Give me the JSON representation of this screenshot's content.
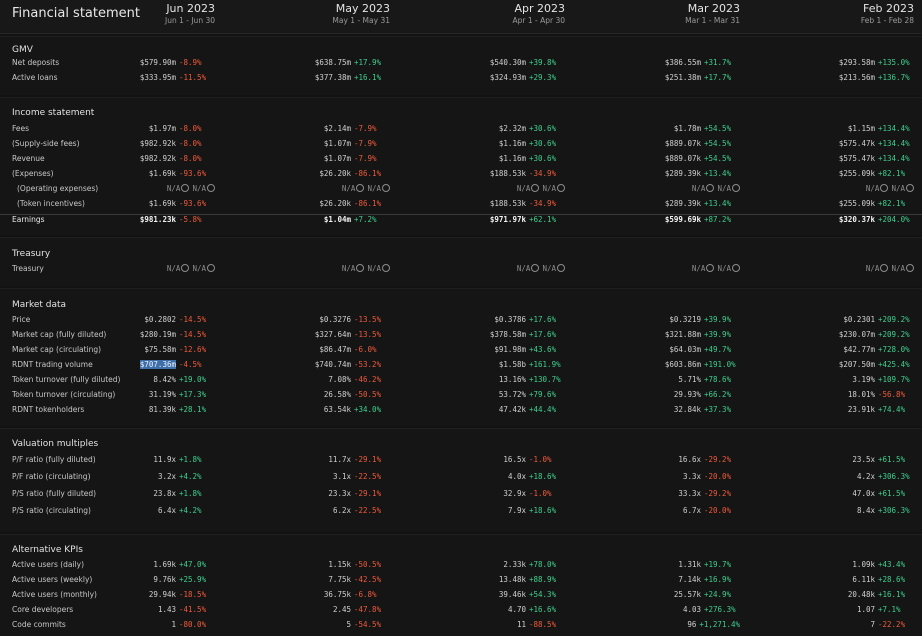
{
  "title": "Financial statement",
  "columns": [
    {
      "month": "Jun 2023",
      "range": "Jun 1 - Jun 30"
    },
    {
      "month": "May 2023",
      "range": "May 1 - May 31"
    },
    {
      "month": "Apr 2023",
      "range": "Apr 1 - Apr 30"
    },
    {
      "month": "Mar 2023",
      "range": "Mar 1 - Mar 31"
    },
    {
      "month": "Feb 2023",
      "range": "Feb 1 - Feb 28"
    }
  ],
  "sections": [
    {
      "title": "GMV",
      "rows": [
        {
          "label": "Net deposits",
          "cells": [
            [
              "$579.90m",
              "-8.9%"
            ],
            [
              "$638.75m",
              "+17.9%"
            ],
            [
              "$540.30m",
              "+39.8%"
            ],
            [
              "$386.55m",
              "+31.7%"
            ],
            [
              "$293.58m",
              "+135.0%"
            ]
          ]
        },
        {
          "label": "Active loans",
          "cells": [
            [
              "$333.95m",
              "-11.5%"
            ],
            [
              "$377.38m",
              "+16.1%"
            ],
            [
              "$324.93m",
              "+29.3%"
            ],
            [
              "$251.38m",
              "+17.7%"
            ],
            [
              "$213.56m",
              "+136.7%"
            ]
          ]
        }
      ]
    },
    {
      "title": "Income statement",
      "rows": [
        {
          "label": "Fees",
          "cells": [
            [
              "$1.97m",
              "-8.0%"
            ],
            [
              "$2.14m",
              "-7.9%"
            ],
            [
              "$2.32m",
              "+30.6%"
            ],
            [
              "$1.78m",
              "+54.5%"
            ],
            [
              "$1.15m",
              "+134.4%"
            ]
          ]
        },
        {
          "label": "(Supply-side fees)",
          "cells": [
            [
              "$982.92k",
              "-8.0%"
            ],
            [
              "$1.07m",
              "-7.9%"
            ],
            [
              "$1.16m",
              "+30.6%"
            ],
            [
              "$889.07k",
              "+54.5%"
            ],
            [
              "$575.47k",
              "+134.4%"
            ]
          ]
        },
        {
          "label": "Revenue",
          "cells": [
            [
              "$982.92k",
              "-8.0%"
            ],
            [
              "$1.07m",
              "-7.9%"
            ],
            [
              "$1.16m",
              "+30.6%"
            ],
            [
              "$889.07k",
              "+54.5%"
            ],
            [
              "$575.47k",
              "+134.4%"
            ]
          ]
        },
        {
          "label": "(Expenses)",
          "cells": [
            [
              "$1.69k",
              "-93.6%"
            ],
            [
              "$26.20k",
              "-86.1%"
            ],
            [
              "$188.53k",
              "-34.9%"
            ],
            [
              "$289.39k",
              "+13.4%"
            ],
            [
              "$255.09k",
              "+82.1%"
            ]
          ]
        },
        {
          "label": "(Operating expenses)",
          "indent": true,
          "cells": [
            [
              "N/A",
              "N/A"
            ],
            [
              "N/A",
              "N/A"
            ],
            [
              "N/A",
              "N/A"
            ],
            [
              "N/A",
              "N/A"
            ],
            [
              "N/A",
              "N/A"
            ]
          ]
        },
        {
          "label": "(Token incentives)",
          "indent": true,
          "cells": [
            [
              "$1.69k",
              "-93.6%"
            ],
            [
              "$26.20k",
              "-86.1%"
            ],
            [
              "$188.53k",
              "-34.9%"
            ],
            [
              "$289.39k",
              "+13.4%"
            ],
            [
              "$255.09k",
              "+82.1%"
            ]
          ]
        },
        {
          "label": "Earnings",
          "bold": true,
          "sep": true,
          "cells": [
            [
              "$981.23k",
              "-5.8%"
            ],
            [
              "$1.04m",
              "+7.2%"
            ],
            [
              "$971.97k",
              "+62.1%"
            ],
            [
              "$599.69k",
              "+87.2%"
            ],
            [
              "$320.37k",
              "+204.0%"
            ]
          ]
        }
      ]
    },
    {
      "title": "Treasury",
      "rows": [
        {
          "label": "Treasury",
          "cells": [
            [
              "N/A",
              "N/A"
            ],
            [
              "N/A",
              "N/A"
            ],
            [
              "N/A",
              "N/A"
            ],
            [
              "N/A",
              "N/A"
            ],
            [
              "N/A",
              "N/A"
            ]
          ]
        }
      ]
    },
    {
      "title": "Market data",
      "rows": [
        {
          "label": "Price",
          "cells": [
            [
              "$0.2802",
              "-14.5%"
            ],
            [
              "$0.3276",
              "-13.5%"
            ],
            [
              "$0.3786",
              "+17.6%"
            ],
            [
              "$0.3219",
              "+39.9%"
            ],
            [
              "$0.2301",
              "+209.2%"
            ]
          ]
        },
        {
          "label": "Market cap (fully diluted)",
          "cells": [
            [
              "$280.19m",
              "-14.5%"
            ],
            [
              "$327.64m",
              "-13.5%"
            ],
            [
              "$378.58m",
              "+17.6%"
            ],
            [
              "$321.88m",
              "+39.9%"
            ],
            [
              "$230.07m",
              "+209.2%"
            ]
          ]
        },
        {
          "label": "Market cap (circulating)",
          "cells": [
            [
              "$75.58m",
              "-12.6%"
            ],
            [
              "$86.47m",
              "-6.0%"
            ],
            [
              "$91.98m",
              "+43.6%"
            ],
            [
              "$64.03m",
              "+49.7%"
            ],
            [
              "$42.77m",
              "+728.0%"
            ]
          ]
        },
        {
          "label": "RDNT trading volume",
          "cells": [
            [
              "$707.36m",
              "-4.5%"
            ],
            [
              "$740.74m",
              "-53.2%"
            ],
            [
              "$1.58b",
              "+161.9%"
            ],
            [
              "$603.86m",
              "+191.0%"
            ],
            [
              "$207.50m",
              "+425.4%"
            ]
          ]
        },
        {
          "label": "Token turnover (fully diluted)",
          "cells": [
            [
              "8.42%",
              "+19.0%"
            ],
            [
              "7.08%",
              "-46.2%"
            ],
            [
              "13.16%",
              "+130.7%"
            ],
            [
              "5.71%",
              "+78.6%"
            ],
            [
              "3.19%",
              "+109.7%"
            ]
          ]
        },
        {
          "label": "Token turnover (circulating)",
          "cells": [
            [
              "31.19%",
              "+17.3%"
            ],
            [
              "26.58%",
              "-50.5%"
            ],
            [
              "53.72%",
              "+79.6%"
            ],
            [
              "29.93%",
              "+66.2%"
            ],
            [
              "18.01%",
              "-56.8%"
            ]
          ]
        },
        {
          "label": "RDNT tokenholders",
          "cells": [
            [
              "81.39k",
              "+28.1%"
            ],
            [
              "63.54k",
              "+34.0%"
            ],
            [
              "47.42k",
              "+44.4%"
            ],
            [
              "32.84k",
              "+37.3%"
            ],
            [
              "23.91k",
              "+74.4%"
            ]
          ]
        }
      ]
    },
    {
      "title": "Valuation multiples",
      "rows": [
        {
          "label": "P/F ratio (fully diluted)",
          "cells": [
            [
              "11.9x",
              "+1.8%"
            ],
            [
              "11.7x",
              "-29.1%"
            ],
            [
              "16.5x",
              "-1.0%"
            ],
            [
              "16.6x",
              "-29.2%"
            ],
            [
              "23.5x",
              "+61.5%"
            ]
          ]
        },
        {
          "label": "P/F ratio (circulating)",
          "cells": [
            [
              "3.2x",
              "+4.2%"
            ],
            [
              "3.1x",
              "-22.5%"
            ],
            [
              "4.0x",
              "+18.6%"
            ],
            [
              "3.3x",
              "-20.0%"
            ],
            [
              "4.2x",
              "+306.3%"
            ]
          ]
        },
        {
          "label": "P/S ratio (fully diluted)",
          "cells": [
            [
              "23.8x",
              "+1.8%"
            ],
            [
              "23.3x",
              "-29.1%"
            ],
            [
              "32.9x",
              "-1.0%"
            ],
            [
              "33.3x",
              "-29.2%"
            ],
            [
              "47.0x",
              "+61.5%"
            ]
          ]
        },
        {
          "label": "P/S ratio (circulating)",
          "cells": [
            [
              "6.4x",
              "+4.2%"
            ],
            [
              "6.2x",
              "-22.5%"
            ],
            [
              "7.9x",
              "+18.6%"
            ],
            [
              "6.7x",
              "-20.0%"
            ],
            [
              "8.4x",
              "+306.3%"
            ]
          ]
        }
      ]
    },
    {
      "title": "Alternative KPIs",
      "rows": [
        {
          "label": "Active users (daily)",
          "cells": [
            [
              "1.69k",
              "+47.0%"
            ],
            [
              "1.15k",
              "-50.5%"
            ],
            [
              "2.33k",
              "+78.0%"
            ],
            [
              "1.31k",
              "+19.7%"
            ],
            [
              "1.09k",
              "+43.4%"
            ]
          ]
        },
        {
          "label": "Active users (weekly)",
          "cells": [
            [
              "9.76k",
              "+25.9%"
            ],
            [
              "7.75k",
              "-42.5%"
            ],
            [
              "13.48k",
              "+88.9%"
            ],
            [
              "7.14k",
              "+16.9%"
            ],
            [
              "6.11k",
              "+28.6%"
            ]
          ]
        },
        {
          "label": "Active users (monthly)",
          "cells": [
            [
              "29.94k",
              "-18.5%"
            ],
            [
              "36.75k",
              "-6.8%"
            ],
            [
              "39.46k",
              "+54.3%"
            ],
            [
              "25.57k",
              "+24.9%"
            ],
            [
              "20.48k",
              "+16.1%"
            ]
          ]
        },
        {
          "label": "Core developers",
          "cells": [
            [
              "1.43",
              "-41.5%"
            ],
            [
              "2.45",
              "-47.8%"
            ],
            [
              "4.70",
              "+16.6%"
            ],
            [
              "4.03",
              "+276.3%"
            ],
            [
              "1.07",
              "+7.1%"
            ]
          ]
        },
        {
          "label": "Code commits",
          "cells": [
            [
              "1",
              "-80.0%"
            ],
            [
              "5",
              "-54.5%"
            ],
            [
              "11",
              "-88.5%"
            ],
            [
              "96",
              "+1,271.4%"
            ],
            [
              "7",
              "-22.2%"
            ]
          ]
        }
      ]
    }
  ]
}
